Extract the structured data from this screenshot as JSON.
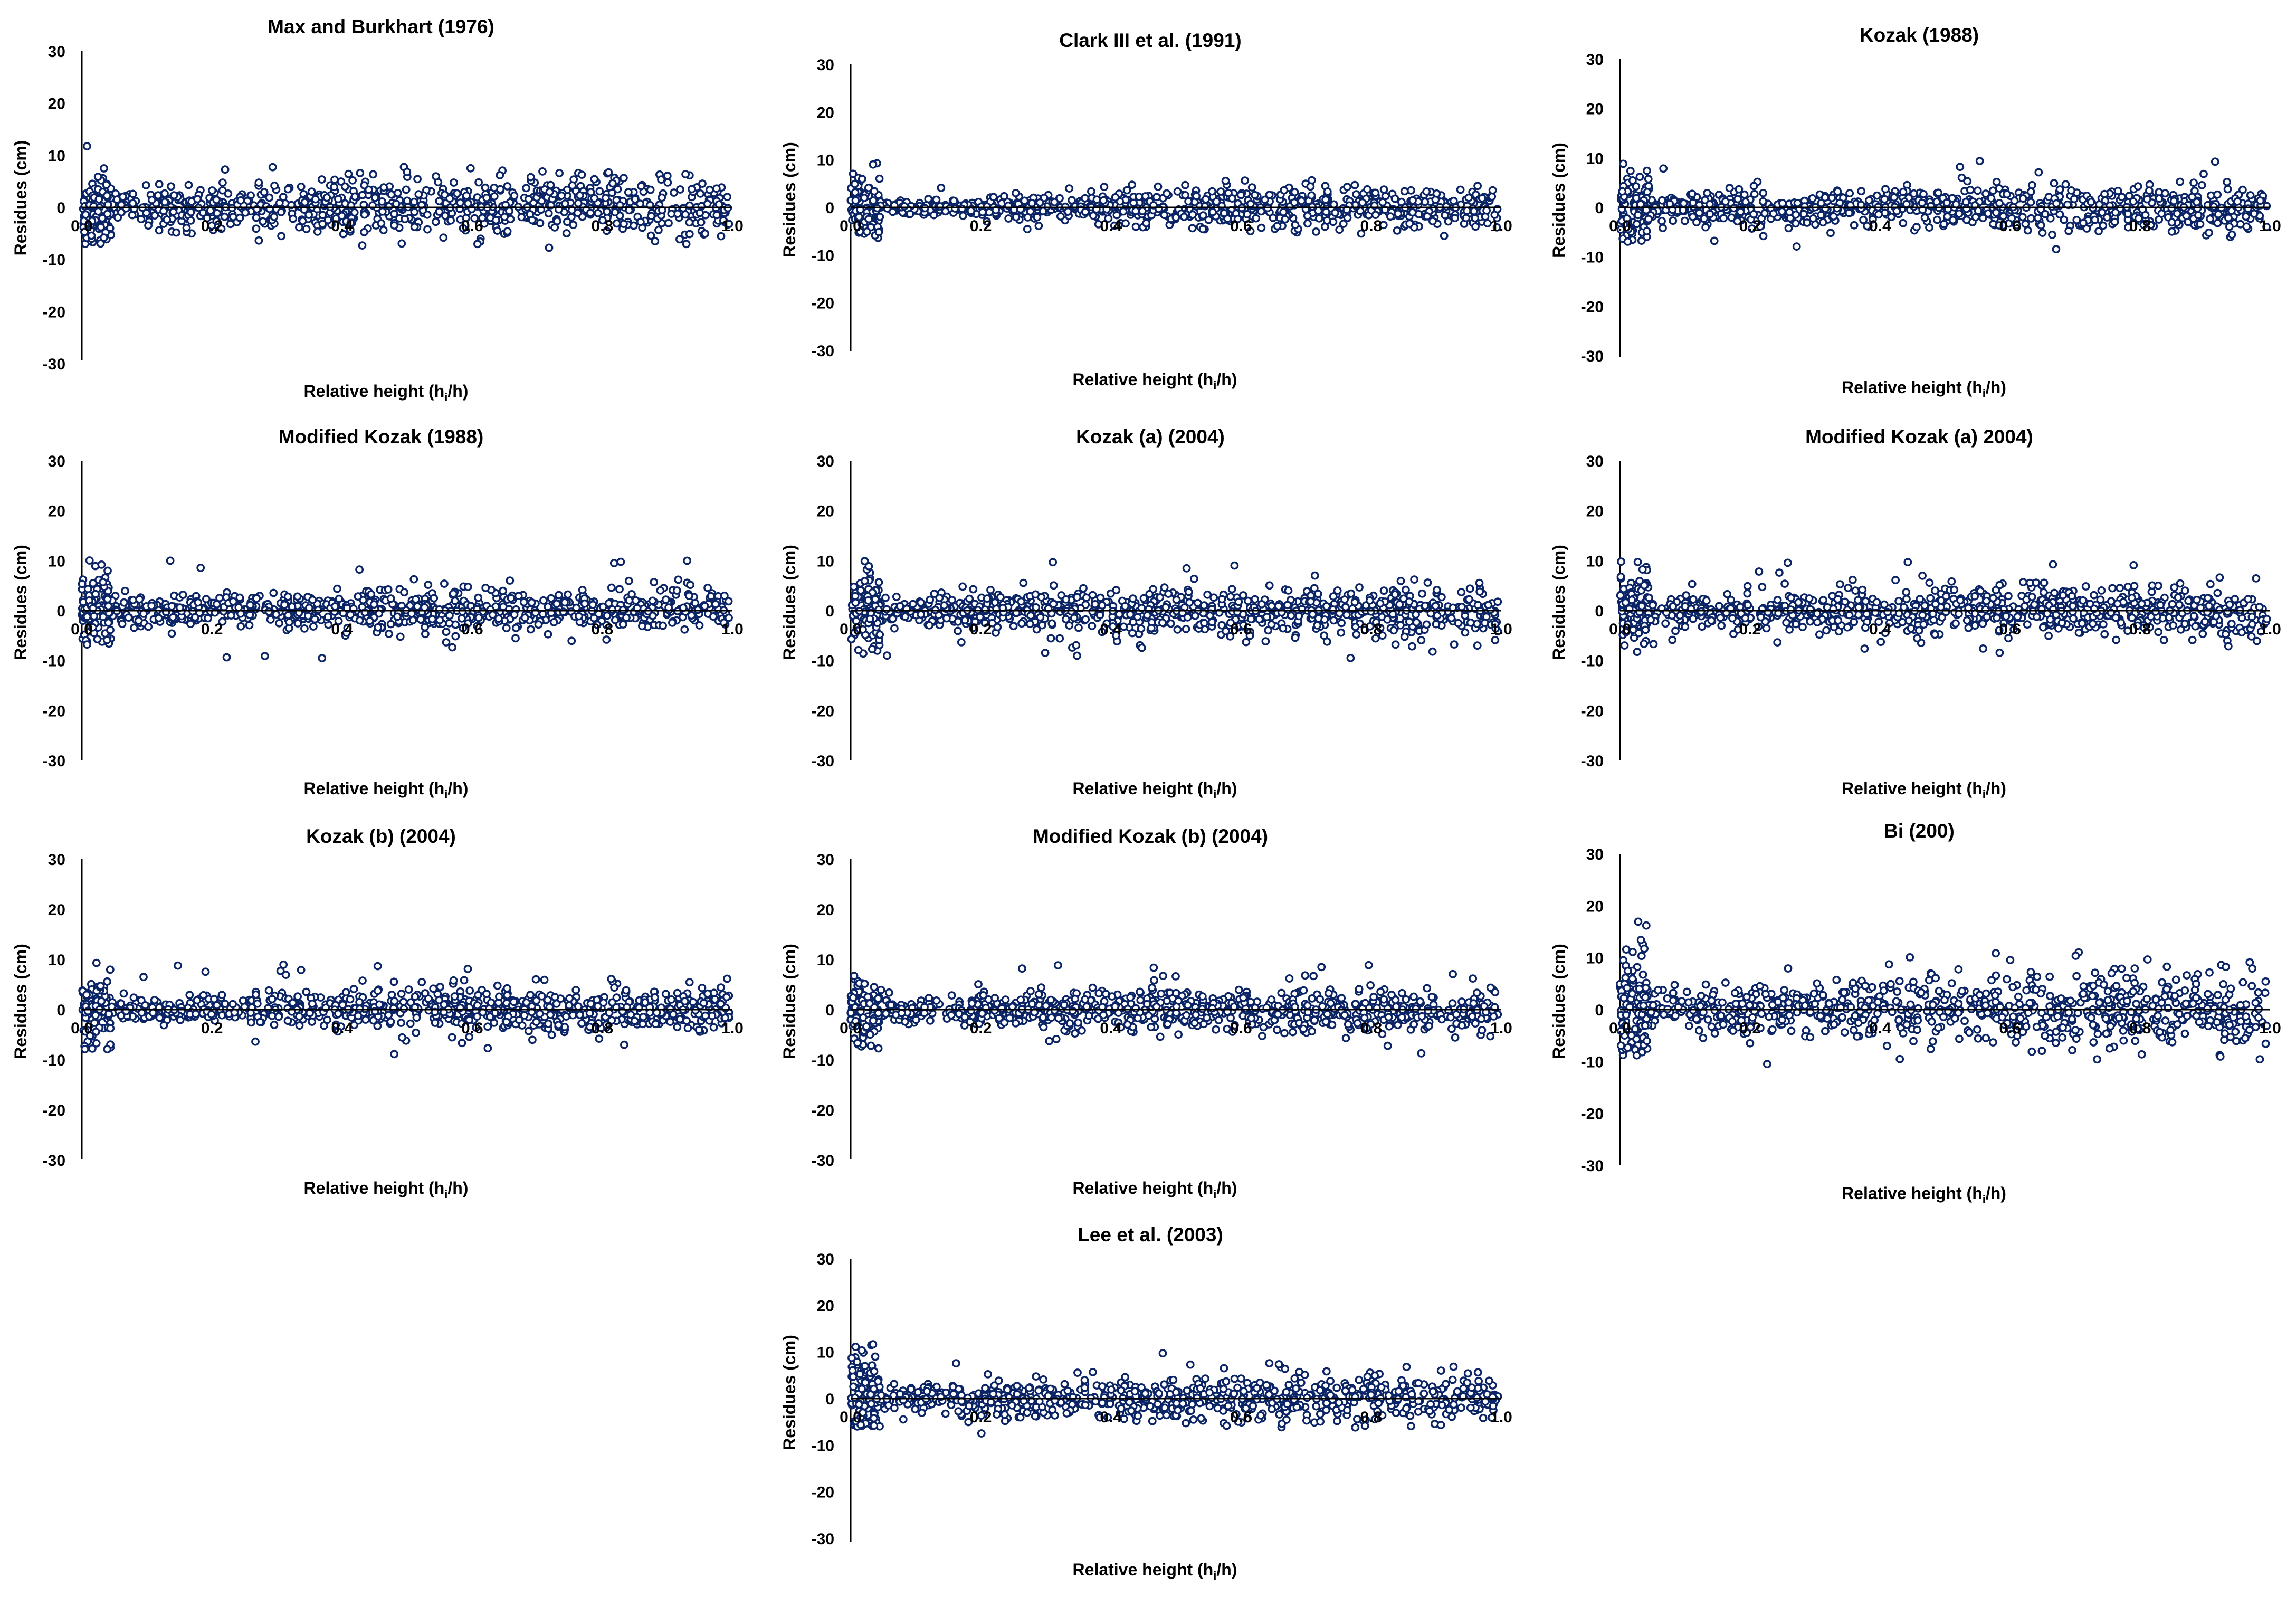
{
  "figure": {
    "point_color": "#0b2466",
    "axis_color": "#000000",
    "background": "#ffffff"
  },
  "chart_data": [
    {
      "type": "scatter",
      "title": "Max and Burkhart (1976)",
      "xlabel": "Relative height (h",
      "xlabel_sub": "i",
      "xlabel_end": "/h)",
      "ylabel": "Residues (cm)",
      "xlim": [
        0,
        1
      ],
      "ylim": [
        -30,
        30
      ],
      "x_ticks": [
        "0.0",
        "0.2",
        "0.4",
        "0.6",
        "0.8",
        "1.0"
      ],
      "y_ticks": [
        "30",
        "20",
        "10",
        "0",
        "-10",
        "-20",
        "-30"
      ],
      "pattern": {
        "spike_max": 13,
        "spike_min": -7,
        "base_spread": 2.5,
        "late_spread": 5.5,
        "upper_outlier": 8,
        "lower_outlier": -7,
        "end_dip": 0
      }
    },
    {
      "type": "scatter",
      "title": "Clark III et al. (1991)",
      "xlabel": "Relative height (h",
      "xlabel_sub": "i",
      "xlabel_end": "/h)",
      "ylabel": "Residues (cm)",
      "xlim": [
        0,
        1
      ],
      "ylim": [
        -30,
        30
      ],
      "x_ticks": [
        "0.0",
        "0.2",
        "0.4",
        "0.6",
        "0.8",
        "1.0"
      ],
      "y_ticks": [
        "30",
        "20",
        "10",
        "0",
        "-10",
        "-20",
        "-30"
      ],
      "pattern": {
        "spike_max": 12,
        "spike_min": -7,
        "base_spread": 1.0,
        "late_spread": 4.0,
        "upper_outlier": 5,
        "lower_outlier": -6,
        "end_dip": 0
      }
    },
    {
      "type": "scatter",
      "title": "Kozak (1988)",
      "xlabel": "Relative height (h",
      "xlabel_sub": "i",
      "xlabel_end": "/h)",
      "ylabel": "Residues (cm)",
      "xlim": [
        0,
        1
      ],
      "ylim": [
        -30,
        30
      ],
      "x_ticks": [
        "0.0",
        "0.2",
        "0.4",
        "0.6",
        "0.8",
        "1.0"
      ],
      "y_ticks": [
        "30",
        "20",
        "10",
        "0",
        "-10",
        "-20",
        "-30"
      ],
      "pattern": {
        "spike_max": 12,
        "spike_min": -7,
        "base_spread": 2.5,
        "late_spread": 4.0,
        "upper_outlier": 10,
        "lower_outlier": -6,
        "end_dip": 0
      }
    },
    {
      "type": "scatter",
      "title": "Modified Kozak (1988)",
      "xlabel": "Relative height (h",
      "xlabel_sub": "i",
      "xlabel_end": "/h)",
      "ylabel": "Residues (cm)",
      "xlim": [
        0,
        1
      ],
      "ylim": [
        -30,
        30
      ],
      "x_ticks": [
        "0.0",
        "0.2",
        "0.4",
        "0.6",
        "0.8",
        "1.0"
      ],
      "y_ticks": [
        "30",
        "20",
        "10",
        "0",
        "-10",
        "-20",
        "-30"
      ],
      "pattern": {
        "spike_max": 12,
        "spike_min": -7,
        "base_spread": 2.5,
        "late_spread": 4.0,
        "upper_outlier": 10,
        "lower_outlier": -5,
        "end_dip": 0
      }
    },
    {
      "type": "scatter",
      "title": "Kozak (a) (2004)",
      "xlabel": "Relative height (h",
      "xlabel_sub": "i",
      "xlabel_end": "/h)",
      "ylabel": "Residues (cm)",
      "xlim": [
        0,
        1
      ],
      "ylim": [
        -30,
        30
      ],
      "x_ticks": [
        "0.0",
        "0.2",
        "0.4",
        "0.6",
        "0.8",
        "1.0"
      ],
      "y_ticks": [
        "30",
        "20",
        "10",
        "0",
        "-10",
        "-20",
        "-30"
      ],
      "pattern": {
        "spike_max": 12,
        "spike_min": -9,
        "base_spread": 2.5,
        "late_spread": 4.5,
        "upper_outlier": 10,
        "lower_outlier": -8,
        "end_dip": -2
      }
    },
    {
      "type": "scatter",
      "title": "Modified Kozak (a) 2004)",
      "xlabel": "Relative height (h",
      "xlabel_sub": "i",
      "xlabel_end": "/h)",
      "ylabel": "Residues (cm)",
      "xlim": [
        0,
        1
      ],
      "ylim": [
        -30,
        30
      ],
      "x_ticks": [
        "0.0",
        "0.2",
        "0.4",
        "0.6",
        "0.8",
        "1.0"
      ],
      "y_ticks": [
        "30",
        "20",
        "10",
        "0",
        "-10",
        "-20",
        "-30"
      ],
      "pattern": {
        "spike_max": 12,
        "spike_min": -9,
        "base_spread": 2.5,
        "late_spread": 4.5,
        "upper_outlier": 10,
        "lower_outlier": -8,
        "end_dip": -2
      }
    },
    {
      "type": "scatter",
      "title": "Kozak (b) (2004)",
      "xlabel": "Relative height (h",
      "xlabel_sub": "i",
      "xlabel_end": "/h)",
      "ylabel": "Residues (cm)",
      "xlim": [
        0,
        1
      ],
      "ylim": [
        -30,
        30
      ],
      "x_ticks": [
        "0.0",
        "0.2",
        "0.4",
        "0.6",
        "0.8",
        "1.0"
      ],
      "y_ticks": [
        "30",
        "20",
        "10",
        "0",
        "-10",
        "-20",
        "-30"
      ],
      "pattern": {
        "spike_max": 12,
        "spike_min": -8,
        "base_spread": 2.0,
        "late_spread": 4.0,
        "upper_outlier": 9,
        "lower_outlier": -6,
        "end_dip": 0
      }
    },
    {
      "type": "scatter",
      "title": "Modified Kozak (b) (2004)",
      "xlabel": "Relative height (h",
      "xlabel_sub": "i",
      "xlabel_end": "/h)",
      "ylabel": "Residues (cm)",
      "xlim": [
        0,
        1
      ],
      "ylim": [
        -30,
        30
      ],
      "x_ticks": [
        "0.0",
        "0.2",
        "0.4",
        "0.6",
        "0.8",
        "1.0"
      ],
      "y_ticks": [
        "30",
        "20",
        "10",
        "0",
        "-10",
        "-20",
        "-30"
      ],
      "pattern": {
        "spike_max": 12,
        "spike_min": -8,
        "base_spread": 2.0,
        "late_spread": 4.0,
        "upper_outlier": 9,
        "lower_outlier": -6,
        "end_dip": 0
      }
    },
    {
      "type": "scatter",
      "title": "Bi (200)",
      "xlabel": "Relative height (h",
      "xlabel_sub": "i",
      "xlabel_end": "/h)",
      "ylabel": "Residues (cm)",
      "xlim": [
        0,
        1
      ],
      "ylim": [
        -30,
        30
      ],
      "x_ticks": [
        "0.0",
        "0.2",
        "0.4",
        "0.6",
        "0.8",
        "1.0"
      ],
      "y_ticks": [
        "30",
        "20",
        "10",
        "0",
        "-10",
        "-20",
        "-30"
      ],
      "pattern": {
        "spike_max": 20,
        "spike_min": -9,
        "base_spread": 3.0,
        "late_spread": 6.0,
        "upper_outlier": 11,
        "lower_outlier": -9,
        "end_dip": -2
      }
    },
    {
      "type": "scatter",
      "title": "Lee et al. (2003)",
      "xlabel": "Relative height (h",
      "xlabel_sub": "i",
      "xlabel_end": "/h)",
      "ylabel": "Residues (cm)",
      "xlim": [
        0,
        1
      ],
      "ylim": [
        -30,
        30
      ],
      "x_ticks": [
        "0.0",
        "0.2",
        "0.4",
        "0.6",
        "0.8",
        "1.0"
      ],
      "y_ticks": [
        "30",
        "20",
        "10",
        "0",
        "-10",
        "-20",
        "-30"
      ],
      "pattern": {
        "spike_max": 18,
        "spike_min": -6,
        "base_spread": 2.5,
        "late_spread": 4.5,
        "upper_outlier": 8,
        "lower_outlier": -6,
        "end_dip": 0
      }
    }
  ]
}
